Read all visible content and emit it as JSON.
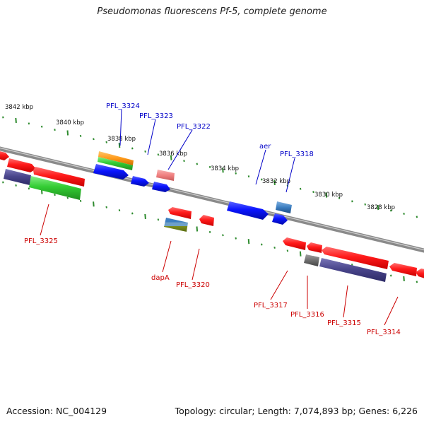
{
  "title": "Pseudomonas fluorescens Pf-5, complete genome",
  "footer": {
    "accession": "Accession: NC_004129",
    "summary": "Topology: circular; Length: 7,074,893 bp; Genes: 6,226"
  },
  "colors": {
    "backbone": "#8a8a8a",
    "ticks": "#2e8b2e",
    "label_top": "#0000c8",
    "label_bottom": "#cc0000",
    "red": "#ff1a1a",
    "blue": "#0a14ff",
    "green": "#33cc33",
    "purple": "#4a468c",
    "orange": "#ff9a1a",
    "pink": "#f08080",
    "grey": "#6e6e6e"
  },
  "scale_labels": [
    "3842 kbp",
    "3840 kbp",
    "3838 kbp",
    "3836 kbp",
    "3834 kbp",
    "3832 kbp",
    "3830 kbp",
    "3828 kbp"
  ],
  "gene_labels": {
    "top": [
      "PFL_3324",
      "PFL_3323",
      "PFL_3322",
      "aer",
      "PFL_3318"
    ],
    "bottom": [
      "PFL_3325",
      "dapA",
      "PFL_3320",
      "PFL_3317",
      "PFL_3316",
      "PFL_3315",
      "PFL_3314"
    ]
  },
  "features": [
    {
      "strand": "+",
      "color": "red"
    },
    {
      "strand": "+",
      "color": "red"
    },
    {
      "strand": "+",
      "color": "red"
    },
    {
      "strand": "-",
      "color": "purple"
    },
    {
      "strand": "-",
      "color": "green"
    },
    {
      "strand": "+",
      "color": "orange"
    },
    {
      "strand": "+",
      "color": "green"
    },
    {
      "strand": "+",
      "color": "blue"
    },
    {
      "strand": "+",
      "color": "blue"
    },
    {
      "strand": "+",
      "color": "blue"
    },
    {
      "strand": "+",
      "color": "pink"
    },
    {
      "strand": "-",
      "color": "red"
    },
    {
      "strand": "-",
      "color": "multi"
    },
    {
      "strand": "-",
      "color": "red"
    },
    {
      "strand": "+",
      "color": "blue"
    },
    {
      "strand": "+",
      "color": "steel"
    },
    {
      "strand": "+",
      "color": "blue"
    },
    {
      "strand": "-",
      "color": "red"
    },
    {
      "strand": "-",
      "color": "red"
    },
    {
      "strand": "-",
      "color": "grey"
    },
    {
      "strand": "-",
      "color": "red"
    },
    {
      "strand": "-",
      "color": "purple"
    },
    {
      "strand": "-",
      "color": "red"
    },
    {
      "strand": "-",
      "color": "red"
    }
  ]
}
